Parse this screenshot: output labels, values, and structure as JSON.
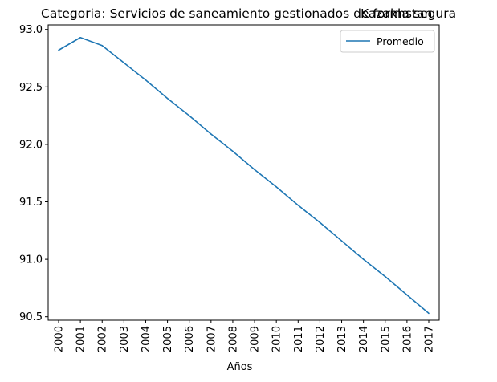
{
  "chart_data": {
    "type": "line",
    "title_left": "Categoria: Servicios de saneamiento gestionados de forma segura",
    "title_right": "Kazakhstan",
    "xlabel": "Años",
    "ylabel": "",
    "categories": [
      "2000",
      "2001",
      "2002",
      "2003",
      "2004",
      "2005",
      "2006",
      "2007",
      "2008",
      "2009",
      "2010",
      "2011",
      "2012",
      "2013",
      "2014",
      "2015",
      "2016",
      "2017"
    ],
    "series": [
      {
        "name": "Promedio",
        "color": "#1f77b4",
        "values": [
          92.82,
          92.93,
          92.86,
          92.71,
          92.56,
          92.4,
          92.25,
          92.09,
          91.94,
          91.78,
          91.63,
          91.47,
          91.32,
          91.16,
          91.0,
          90.85,
          90.69,
          90.53
        ]
      }
    ],
    "yticks": [
      "90.5",
      "91.0",
      "91.5",
      "92.0",
      "92.5",
      "93.0"
    ],
    "ylim": [
      90.47,
      93.04
    ],
    "grid": false,
    "legend_position": "top-right"
  }
}
